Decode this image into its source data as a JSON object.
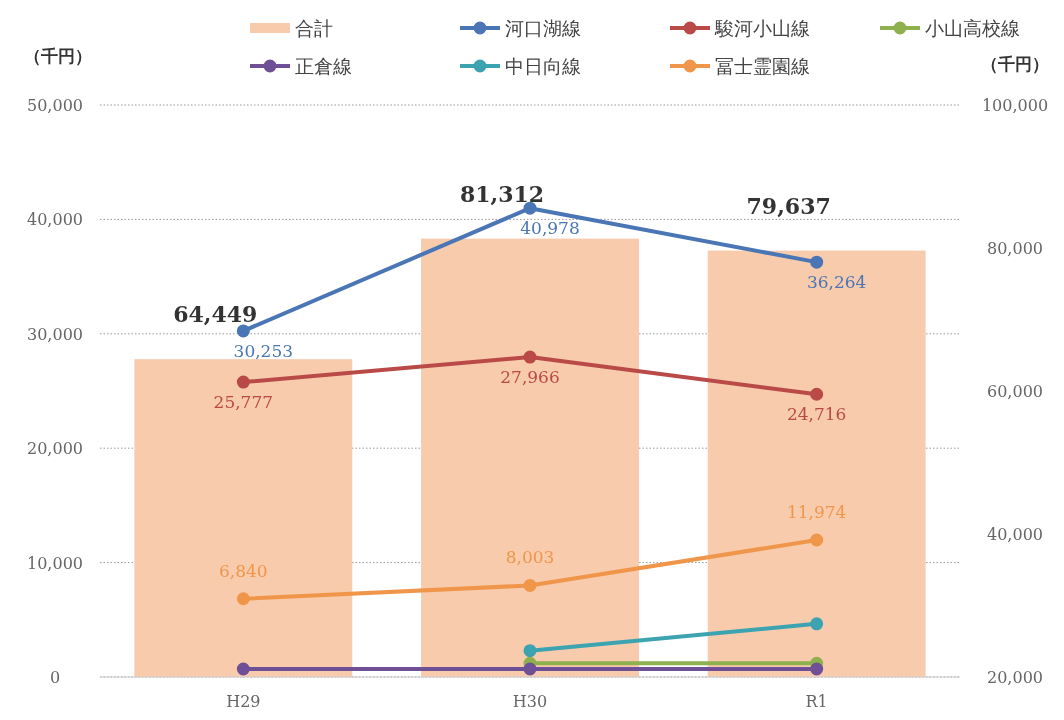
{
  "chart_data": {
    "type": "bar",
    "categories": [
      "H29",
      "H30",
      "R1"
    ],
    "ylabel": "（千円）",
    "y2label": "（千円）",
    "ylim": [
      0,
      50000
    ],
    "yticks": [
      {
        "value": 0,
        "label": "0"
      },
      {
        "value": 10000,
        "label": "10,000"
      },
      {
        "value": 20000,
        "label": "20,000"
      },
      {
        "value": 30000,
        "label": "30,000"
      },
      {
        "value": 40000,
        "label": "40,000"
      },
      {
        "value": 50000,
        "label": "50,000"
      }
    ],
    "y2lim": [
      20000,
      100000
    ],
    "y2ticks": [
      {
        "value": 20000,
        "label": "20,000"
      },
      {
        "value": 40000,
        "label": "40,000"
      },
      {
        "value": 60000,
        "label": "60,000"
      },
      {
        "value": 80000,
        "label": "80,000"
      },
      {
        "value": 100000,
        "label": "100,000"
      }
    ],
    "grid": "y",
    "legend": "top",
    "marker": "circle",
    "series": [
      {
        "name": "合計",
        "axis": "y2",
        "color": "#f8cbad",
        "values": [
          64449,
          81312,
          79637
        ],
        "value_labels": [
          "64,449",
          "81,312",
          "79,637"
        ]
      },
      {
        "name": "河口湖線",
        "type": "line",
        "color": "#4a76b5",
        "values": [
          30253,
          40978,
          36264
        ],
        "value_labels": [
          "30,253",
          "40,978",
          "36,264"
        ]
      },
      {
        "name": "駿河小山線",
        "type": "line",
        "color": "#b94a48",
        "values": [
          25777,
          27966,
          24716
        ],
        "value_labels": [
          "25,777",
          "27,966",
          "24,716"
        ]
      },
      {
        "name": "小山高校線",
        "type": "line",
        "color": "#8fb04f",
        "values": [
          null,
          1200,
          1200
        ]
      },
      {
        "name": "正倉線",
        "type": "line",
        "color": "#6f4f96",
        "values": [
          700,
          700,
          700
        ]
      },
      {
        "name": "中日向線",
        "type": "line",
        "color": "#3ca3b0",
        "values": [
          null,
          2300,
          4650
        ]
      },
      {
        "name": "冨士霊園線",
        "type": "line",
        "color": "#f0964a",
        "values": [
          6840,
          8003,
          11974
        ],
        "value_labels": [
          "6,840",
          "8,003",
          "11,974"
        ]
      }
    ]
  }
}
